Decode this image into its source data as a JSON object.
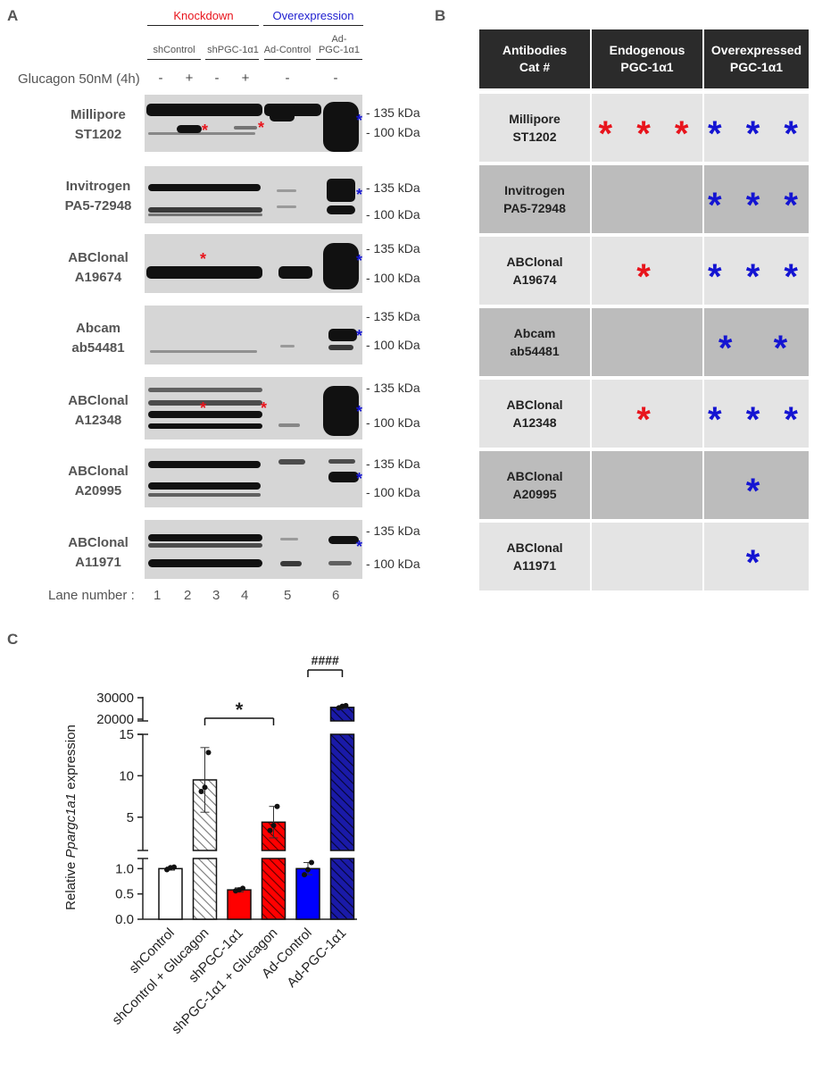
{
  "panelA": {
    "letter": "A",
    "header_knockdown": "Knockdown",
    "header_overexpression": "Overexpression",
    "lanes": [
      "shControl",
      "shPGC-1α1",
      "Ad-Control",
      "Ad-\nPGC-1α1"
    ],
    "glucagon_label": "Glucagon 50nM (4h)",
    "signs": [
      "-",
      "+",
      "-",
      "+",
      "-",
      "-"
    ],
    "antibodies": [
      {
        "name": "Millipore",
        "cat": "ST1202"
      },
      {
        "name": "Invitrogen",
        "cat": "PA5-72948"
      },
      {
        "name": "ABClonal",
        "cat": "A19674"
      },
      {
        "name": "Abcam",
        "cat": "ab54481"
      },
      {
        "name": "ABClonal",
        "cat": "A12348"
      },
      {
        "name": "ABClonal",
        "cat": "A20995"
      },
      {
        "name": "ABClonal",
        "cat": "A11971"
      }
    ],
    "kda135": "- 135 kDa",
    "kda100": "- 100 kDa",
    "lane_number_label": "Lane number :",
    "lane_numbers": [
      "1",
      "2",
      "3",
      "4",
      "5",
      "6"
    ],
    "asterisk": "*"
  },
  "panelB": {
    "letter": "B",
    "headers": [
      "Antibodies\nCat #",
      "Endogenous\nPGC-1α1",
      "Overexpressed\nPGC-1α1"
    ],
    "rows": [
      {
        "antibody": "Millipore\nST1202",
        "endogenous": "* * *",
        "overexpressed": "* * *"
      },
      {
        "antibody": "Invitrogen\nPA5-72948",
        "endogenous": "",
        "overexpressed": "* * *"
      },
      {
        "antibody": "ABClonal\nA19674",
        "endogenous": "*",
        "overexpressed": "* * *"
      },
      {
        "antibody": "Abcam\nab54481",
        "endogenous": "",
        "overexpressed": "*  *"
      },
      {
        "antibody": "ABClonal\nA12348",
        "endogenous": "*",
        "overexpressed": "* * *"
      },
      {
        "antibody": "ABClonal\nA20995",
        "endogenous": "",
        "overexpressed": "*"
      },
      {
        "antibody": "ABClonal\nA11971",
        "endogenous": "",
        "overexpressed": "*"
      }
    ]
  },
  "panelC": {
    "letter": "C",
    "chart_data": {
      "type": "bar",
      "ylabel_pre": "Relative ",
      "ylabel_italic": "Ppargc1a1",
      "ylabel_post": " expression",
      "categories": [
        "shControl",
        "shControl + Glucagon",
        "shPGC-1α1",
        "shPGC-1α1 + Glucagon",
        "Ad-Control",
        "Ad-PGC-1α1"
      ],
      "values": [
        1.0,
        9.5,
        0.58,
        4.4,
        1.0,
        25500
      ],
      "errors": [
        0.03,
        3.9,
        0.04,
        1.9,
        0.12,
        800
      ],
      "points": [
        [
          0.98,
          1.02,
          1.03
        ],
        [
          8.1,
          8.6,
          12.8
        ],
        [
          0.56,
          0.58,
          0.61
        ],
        [
          3.4,
          4.0,
          6.3
        ],
        [
          0.88,
          0.98,
          1.12
        ],
        [
          25200,
          26000,
          26300
        ]
      ],
      "colors": [
        "#ffffff",
        "#ffffff",
        "#ff0000",
        "#ff0000",
        "#0000ff",
        "#1818a8"
      ],
      "hatched": [
        false,
        true,
        false,
        true,
        false,
        true
      ],
      "segments": [
        {
          "ylim": [
            0,
            1.2
          ],
          "ticks": [
            "0.0",
            "0.5",
            "1.0"
          ]
        },
        {
          "ylim": [
            1.2,
            15
          ],
          "ticks": [
            "5",
            "10",
            "15"
          ]
        },
        {
          "ylim": [
            15000,
            30000
          ],
          "ticks": [
            "20000",
            "30000"
          ]
        }
      ],
      "significance": [
        {
          "from": 1,
          "to": 3,
          "label": "*"
        },
        {
          "from": 4,
          "to": 5,
          "label": "####"
        }
      ]
    }
  }
}
